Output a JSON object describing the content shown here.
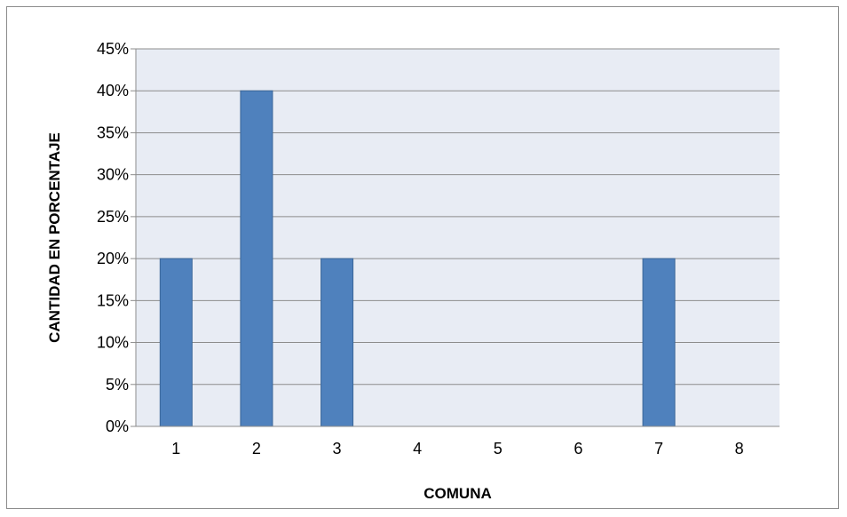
{
  "chart_data": {
    "type": "bar",
    "title": "",
    "xlabel": "COMUNA",
    "ylabel": "CANTIDAD EN PORCENTAJE",
    "categories": [
      "1",
      "2",
      "3",
      "4",
      "5",
      "6",
      "7",
      "8"
    ],
    "values": [
      0.2,
      0.4,
      0.2,
      0,
      0,
      0,
      0.2,
      0
    ],
    "ylim": [
      0,
      0.45
    ],
    "yticks": [
      0,
      0.05,
      0.1,
      0.15,
      0.2,
      0.25,
      0.3,
      0.35,
      0.4,
      0.45
    ],
    "ytick_labels": [
      "0%",
      "5%",
      "10%",
      "15%",
      "20%",
      "25%",
      "30%",
      "35%",
      "40%",
      "45%"
    ],
    "grid": true,
    "legend": "none",
    "colors": {
      "bar_fill": "#4f81bd",
      "bar_stroke": "#3a6699",
      "plot_background": "#e8ecf4",
      "gridline": "#8c8c8c"
    }
  }
}
